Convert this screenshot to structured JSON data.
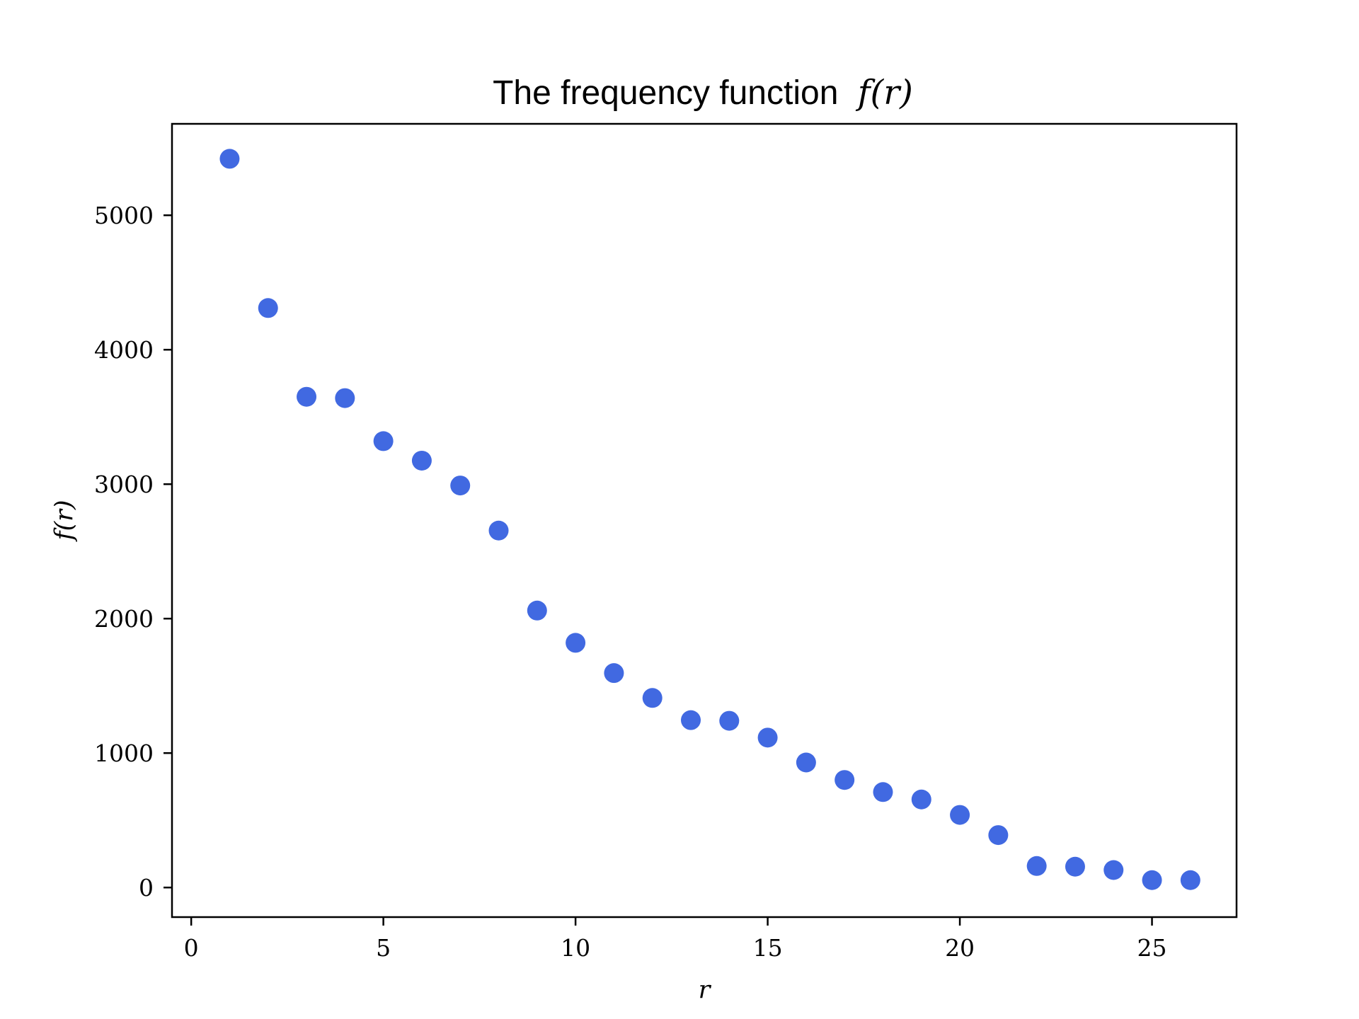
{
  "chart_data": {
    "type": "scatter",
    "title": "The frequency function",
    "title_math": "f(r)",
    "xlabel": "r",
    "ylabel": "f(r)",
    "xlim": [
      -0.5,
      27.2
    ],
    "ylim": [
      -220,
      5680
    ],
    "xticks": [
      0,
      5,
      10,
      15,
      20,
      25
    ],
    "yticks": [
      0,
      1000,
      2000,
      3000,
      4000,
      5000
    ],
    "xtick_labels": [
      "0",
      "5",
      "10",
      "15",
      "20",
      "25"
    ],
    "ytick_labels": [
      "0",
      "1000",
      "2000",
      "3000",
      "4000",
      "5000"
    ],
    "grid": false,
    "marker_color": "#4169e1",
    "series": [
      {
        "x": [
          1,
          2,
          3,
          4,
          5,
          6,
          7,
          8,
          9,
          10,
          11,
          12,
          13,
          14,
          15,
          16,
          17,
          18,
          19,
          20,
          21,
          22,
          23,
          24,
          25,
          26
        ],
        "y": [
          5420,
          4310,
          3650,
          3640,
          3320,
          3175,
          2990,
          2655,
          2060,
          1820,
          1595,
          1410,
          1245,
          1240,
          1115,
          930,
          800,
          710,
          655,
          540,
          390,
          160,
          155,
          130,
          55,
          55
        ]
      }
    ]
  }
}
